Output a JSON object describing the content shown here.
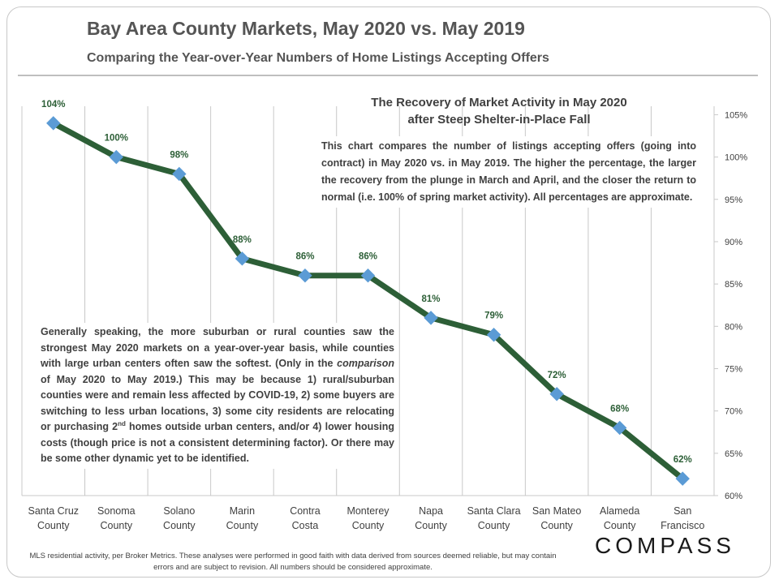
{
  "header": {
    "title": "Bay Area County Markets, May 2020 vs. May 2019",
    "subtitle": "Comparing the Year-over-Year Numbers of Home Listings Accepting Offers"
  },
  "callouts": {
    "recovery_title": "The Recovery of Market Activity in May 2020\nafter Steep Shelter-in-Place Fall",
    "recovery_body": "This chart compares the number of listings accepting offers (going into contract) in May 2020 vs. in May 2019. The higher the percentage, the larger the recovery from the plunge in March and April, and the closer the return to normal (i.e. 100% of spring market activity). All percentages are approximate.",
    "analysis_part1": "Generally speaking, the more suburban or rural counties saw the strongest May 2020 markets on a year-over-year basis, while counties with large urban centers often saw the softest. (Only in the ",
    "analysis_emph": "comparison",
    "analysis_part2": " of May 2020 to May 2019.) This may be because 1) rural/suburban counties were and remain less affected by COVID-19, 2) some buyers are switching to less urban locations, 3) some city residents are relocating or purchasing 2",
    "analysis_sup": "nd",
    "analysis_part3": " homes outside urban centers, and/or 4) lower housing costs (though price is not a consistent determining factor). Or there may be some other dynamic yet to be identified."
  },
  "footer": {
    "note": "MLS residential activity, per Broker Metrics. These analyses were performed in good faith with data derived from sources deemed reliable, but may contain errors and are subject to revision.  All numbers should be considered approximate.",
    "logo": "COMPASS"
  },
  "colors": {
    "line": "#2d5f37",
    "marker": "#5b9bd5",
    "label": "#2d5f37",
    "grid": "#c8c8c8",
    "axis_text": "#404040"
  },
  "chart_data": {
    "type": "line",
    "title": "Bay Area County Markets, May 2020 vs. May 2019",
    "subtitle": "Comparing the Year-over-Year Numbers of Home Listings Accepting Offers",
    "categories": [
      [
        "Santa Cruz",
        "County"
      ],
      [
        "Sonoma",
        "County"
      ],
      [
        "Solano",
        "County"
      ],
      [
        "Marin",
        "County"
      ],
      [
        "Contra",
        "Costa"
      ],
      [
        "Monterey",
        "County"
      ],
      [
        "Napa",
        "County"
      ],
      [
        "Santa Clara",
        "County"
      ],
      [
        "San Mateo",
        "County"
      ],
      [
        "Alameda",
        "County"
      ],
      [
        "San",
        "Francisco"
      ]
    ],
    "values": [
      104,
      100,
      98,
      88,
      86,
      86,
      81,
      79,
      72,
      68,
      62
    ],
    "data_labels": [
      "104%",
      "100%",
      "98%",
      "88%",
      "86%",
      "86%",
      "81%",
      "79%",
      "72%",
      "68%",
      "62%"
    ],
    "y_ticks": [
      60,
      65,
      70,
      75,
      80,
      85,
      90,
      95,
      100,
      105
    ],
    "y_tick_labels": [
      "60%",
      "65%",
      "70%",
      "75%",
      "80%",
      "85%",
      "90%",
      "95%",
      "100%",
      "105%"
    ],
    "ylim": [
      60,
      106
    ],
    "y_axis_side": "right",
    "grid": "vertical",
    "xlabel": "",
    "ylabel": ""
  }
}
